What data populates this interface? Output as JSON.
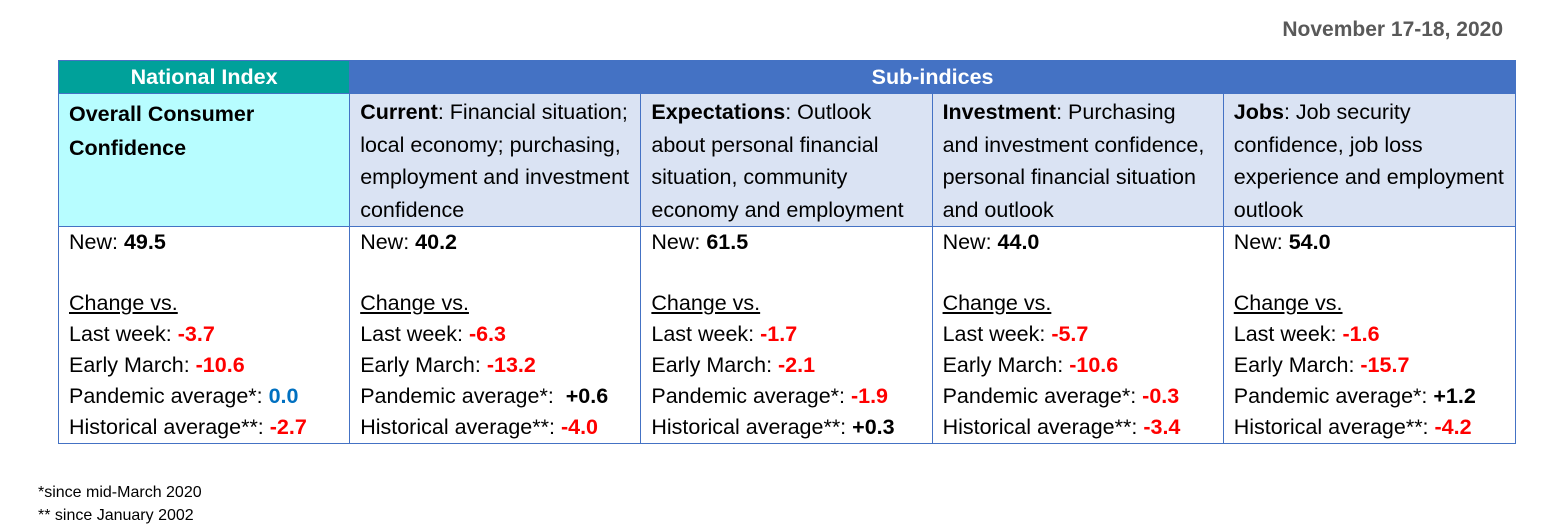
{
  "date": "November 17-18, 2020",
  "header": {
    "national": "National Index",
    "sub": "Sub-indices"
  },
  "columns": [
    {
      "title": "Overall Consumer Confidence",
      "desc": "",
      "new_label": "New: ",
      "new_value": "49.5",
      "change_label": "Change vs.",
      "last_week_label": "Last week: ",
      "last_week": "-3.7",
      "early_march_label": "Early March: ",
      "early_march": "-10.6",
      "pandemic_label": "Pandemic average*: ",
      "pandemic": "0.0",
      "historical_label": "Historical average**: ",
      "historical": "-2.7"
    },
    {
      "title": "Current",
      "desc": ": Financial situation; local economy; purchasing, employment and investment confidence",
      "new_label": "New: ",
      "new_value": "40.2",
      "change_label": "Change vs.",
      "last_week_label": "Last week: ",
      "last_week": "-6.3",
      "early_march_label": "Early March: ",
      "early_march": "-13.2",
      "pandemic_label": "Pandemic average*:  ",
      "pandemic": "+0.6",
      "historical_label": "Historical average**: ",
      "historical": "-4.0"
    },
    {
      "title": "Expectations",
      "desc": ": Outlook about personal financial situation, community economy and employment",
      "new_label": "New: ",
      "new_value": "61.5",
      "change_label": "Change vs.",
      "last_week_label": "Last week: ",
      "last_week": "-1.7",
      "early_march_label": "Early March: ",
      "early_march": "-2.1",
      "pandemic_label": "Pandemic average*: ",
      "pandemic": "-1.9",
      "historical_label": "Historical average**: ",
      "historical": "+0.3"
    },
    {
      "title": "Investment",
      "desc": ": Purchasing and investment confidence, personal financial situation and outlook",
      "new_label": "New: ",
      "new_value": "44.0",
      "change_label": "Change vs.",
      "last_week_label": "Last week: ",
      "last_week": "-5.7",
      "early_march_label": "Early March: ",
      "early_march": "-10.6",
      "pandemic_label": "Pandemic average*: ",
      "pandemic": "-0.3",
      "historical_label": "Historical average**: ",
      "historical": "-3.4"
    },
    {
      "title": "Jobs",
      "desc": ": Job security confidence, job loss experience and employment outlook",
      "new_label": "New: ",
      "new_value": "54.0",
      "change_label": "Change vs.",
      "last_week_label": "Last week: ",
      "last_week": "-1.6",
      "early_march_label": "Early March: ",
      "early_march": "-15.7",
      "pandemic_label": "Pandemic average*: ",
      "pandemic": "+1.2",
      "historical_label": "Historical average**: ",
      "historical": "-4.2"
    }
  ],
  "footnotes": [
    "*since mid-March 2020",
    "** since January 2002"
  ]
}
